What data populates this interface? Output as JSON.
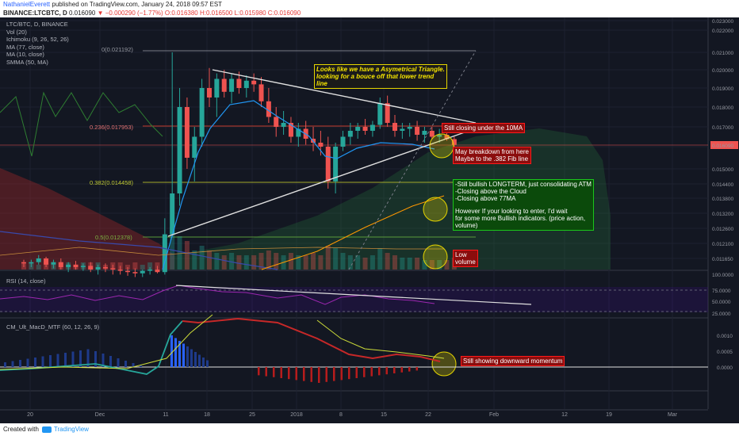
{
  "header": {
    "author": "NathanielEverett",
    "published": "published on TradingView.com, January 24, 2018 09:57 EST",
    "symbol": "BINANCE:LTCBTC, D",
    "last": "0.016090",
    "change": "−0.000290 (−1.77%)",
    "ohlc": "O:0.016380 H:0.016500 L:0.015980 C:0.016090"
  },
  "legend": {
    "title": "LTC/BTC, D, BINANCE",
    "vol": "Vol (20)",
    "ichimoku": "Ichimoku (9, 26, 52, 26)",
    "ma77": "MA (77, close)",
    "ma10": "MA (10, close)",
    "smma": "SMMA (50, MA)",
    "rsi": "RSI (14, close)",
    "macd": "CM_Ult_MacD_MTF (60, 12, 26, 9)"
  },
  "colors": {
    "background": "#131722",
    "bull": "#26a69a",
    "bear": "#ef5350",
    "accent_red": "#ff1a1a",
    "accent_green": "#1bc61b",
    "accent_yellow": "#e6d600"
  },
  "annotations": {
    "triangle": "Looks like we have a Asymetrical Triangle. looking for a bouce off that lower trend line",
    "closing": "Still closing under the 10MA",
    "breakdown1": "May breakdown from here",
    "breakdown2": "Maybe to the .382 Fib line",
    "bullish1": "-Still bullish LONGTERM, just consolidating ATM",
    "bullish2": "-Closing above the Cloud",
    "bullish3": "-Closing above 77MA",
    "bullish4": "However If your looking to enter, I'd wait",
    "bullish5": "for some more Bullish indicators. (price action,",
    "bullish6": "volume)",
    "low1": "Low",
    "low2": "volume",
    "momentum": "Still showing downward momentum"
  },
  "fib_labels": {
    "f0": "0(0.021192)",
    "f236": "0.236(0.017953)",
    "f382": "0.382(0.014458)",
    "f5": "0.5(0.012378)"
  },
  "footer": {
    "created": "Created with",
    "brand": "TradingView"
  },
  "chart_data": {
    "type": "candlestick",
    "symbol": "LTC/BTC",
    "timeframe": "D",
    "exchange": "BINANCE",
    "last_price": 0.01609,
    "price_axis_ticks": [
      0.023,
      0.022,
      0.021,
      0.02,
      0.019,
      0.018,
      0.017,
      0.016,
      0.015,
      0.0144,
      0.0138,
      0.0132,
      0.0126,
      0.0121,
      0.01165
    ],
    "price_axis_labels": [
      "0.023000",
      "0.022000",
      "0.021000",
      "0.020000",
      "0.019000",
      "0.018000",
      "0.017000",
      "0.016090",
      "0.015000",
      "0.014400",
      "0.013800",
      "0.013200",
      "0.012600",
      "0.012100",
      "0.011650"
    ],
    "date_ticks": [
      "20",
      "Dec",
      "11",
      "18",
      "25",
      "2018",
      "8",
      "15",
      "22",
      "Feb",
      "12",
      "19",
      "Mar"
    ],
    "fib_levels": [
      {
        "ratio": 0,
        "price": 0.021192
      },
      {
        "ratio": 0.236,
        "price": 0.017953
      },
      {
        "ratio": 0.382,
        "price": 0.014458
      },
      {
        "ratio": 0.5,
        "price": 0.012378
      }
    ],
    "rsi_ticks": [
      "100.0000",
      "75.0000",
      "50.0000",
      "25.0000"
    ],
    "macd_ticks": [
      "0.0010",
      "0.0005",
      "0.0000"
    ],
    "candles": [
      [
        0.0115,
        0.0116,
        0.0113,
        0.01145
      ],
      [
        0.01145,
        0.0116,
        0.0113,
        0.0115
      ],
      [
        0.0115,
        0.01175,
        0.0114,
        0.01165
      ],
      [
        0.01165,
        0.0117,
        0.0113,
        0.0114
      ],
      [
        0.0114,
        0.0116,
        0.01125,
        0.0115
      ],
      [
        0.0115,
        0.01165,
        0.0112,
        0.0113
      ],
      [
        0.0113,
        0.0115,
        0.0111,
        0.0114
      ],
      [
        0.0114,
        0.01155,
        0.0112,
        0.0113
      ],
      [
        0.0113,
        0.01145,
        0.01115,
        0.01135
      ],
      [
        0.01135,
        0.0115,
        0.0111,
        0.0112
      ],
      [
        0.0112,
        0.0114,
        0.011,
        0.0113
      ],
      [
        0.0113,
        0.01145,
        0.0111,
        0.01125
      ],
      [
        0.01125,
        0.0114,
        0.011,
        0.0112
      ],
      [
        0.0112,
        0.01135,
        0.011,
        0.01115
      ],
      [
        0.01115,
        0.0113,
        0.01095,
        0.0111
      ],
      [
        0.0111,
        0.01125,
        0.0109,
        0.01105
      ],
      [
        0.01105,
        0.0112,
        0.0109,
        0.01115
      ],
      [
        0.01115,
        0.0113,
        0.011,
        0.0112
      ],
      [
        0.0112,
        0.01135,
        0.01105,
        0.0111
      ],
      [
        0.0111,
        0.013,
        0.011,
        0.0124
      ],
      [
        0.0124,
        0.021,
        0.0123,
        0.014
      ],
      [
        0.014,
        0.019,
        0.0135,
        0.018
      ],
      [
        0.018,
        0.0185,
        0.015,
        0.0155
      ],
      [
        0.0155,
        0.017,
        0.0145,
        0.0165
      ],
      [
        0.0165,
        0.0195,
        0.016,
        0.019
      ],
      [
        0.019,
        0.0201,
        0.018,
        0.0185
      ],
      [
        0.0185,
        0.0198,
        0.0175,
        0.0195
      ],
      [
        0.0195,
        0.02,
        0.0185,
        0.0188
      ],
      [
        0.0188,
        0.0198,
        0.0182,
        0.0195
      ],
      [
        0.0195,
        0.0199,
        0.0187,
        0.019
      ],
      [
        0.019,
        0.0197,
        0.0185,
        0.0194
      ],
      [
        0.0194,
        0.0198,
        0.0188,
        0.0192
      ],
      [
        0.0192,
        0.0196,
        0.018,
        0.0183
      ],
      [
        0.0183,
        0.019,
        0.0172,
        0.0175
      ],
      [
        0.0175,
        0.018,
        0.0165,
        0.017
      ],
      [
        0.017,
        0.0178,
        0.0166,
        0.0172
      ],
      [
        0.0172,
        0.0175,
        0.0162,
        0.0165
      ],
      [
        0.0165,
        0.0172,
        0.016,
        0.0169
      ],
      [
        0.0169,
        0.0173,
        0.0161,
        0.0164
      ],
      [
        0.0164,
        0.017,
        0.0158,
        0.0162
      ],
      [
        0.0162,
        0.0168,
        0.0156,
        0.016
      ],
      [
        0.016,
        0.0165,
        0.0142,
        0.0145
      ],
      [
        0.0145,
        0.0162,
        0.014,
        0.016
      ],
      [
        0.016,
        0.0168,
        0.0158,
        0.0165
      ],
      [
        0.0165,
        0.0172,
        0.0161,
        0.0168
      ],
      [
        0.0168,
        0.0172,
        0.0164,
        0.017
      ],
      [
        0.017,
        0.0174,
        0.0166,
        0.0168
      ],
      [
        0.0168,
        0.0173,
        0.0165,
        0.0171
      ],
      [
        0.0171,
        0.0185,
        0.0169,
        0.0182
      ],
      [
        0.0182,
        0.0186,
        0.017,
        0.0172
      ],
      [
        0.0172,
        0.0176,
        0.0165,
        0.0168
      ],
      [
        0.0168,
        0.0172,
        0.0164,
        0.0169
      ],
      [
        0.0169,
        0.0172,
        0.0165,
        0.017
      ],
      [
        0.017,
        0.0173,
        0.0163,
        0.0166
      ],
      [
        0.0166,
        0.017,
        0.0162,
        0.0168
      ],
      [
        0.0168,
        0.017,
        0.0164,
        0.0165
      ],
      [
        0.0165,
        0.0169,
        0.0162,
        0.0166
      ],
      [
        0.0166,
        0.0168,
        0.0163,
        0.01638
      ],
      [
        0.01638,
        0.0165,
        0.01598,
        0.01609
      ]
    ],
    "volume": [
      3,
      3,
      2,
      3,
      2,
      3,
      3,
      2,
      3,
      3,
      3,
      2,
      3,
      3,
      2,
      3,
      2,
      3,
      3,
      9,
      18,
      14,
      12,
      8,
      10,
      8,
      7,
      6,
      7,
      6,
      6,
      6,
      7,
      8,
      7,
      6,
      7,
      6,
      6,
      7,
      6,
      10,
      9,
      7,
      6,
      6,
      5,
      6,
      9,
      7,
      6,
      5,
      5,
      5,
      4,
      4,
      4,
      4,
      5
    ]
  }
}
